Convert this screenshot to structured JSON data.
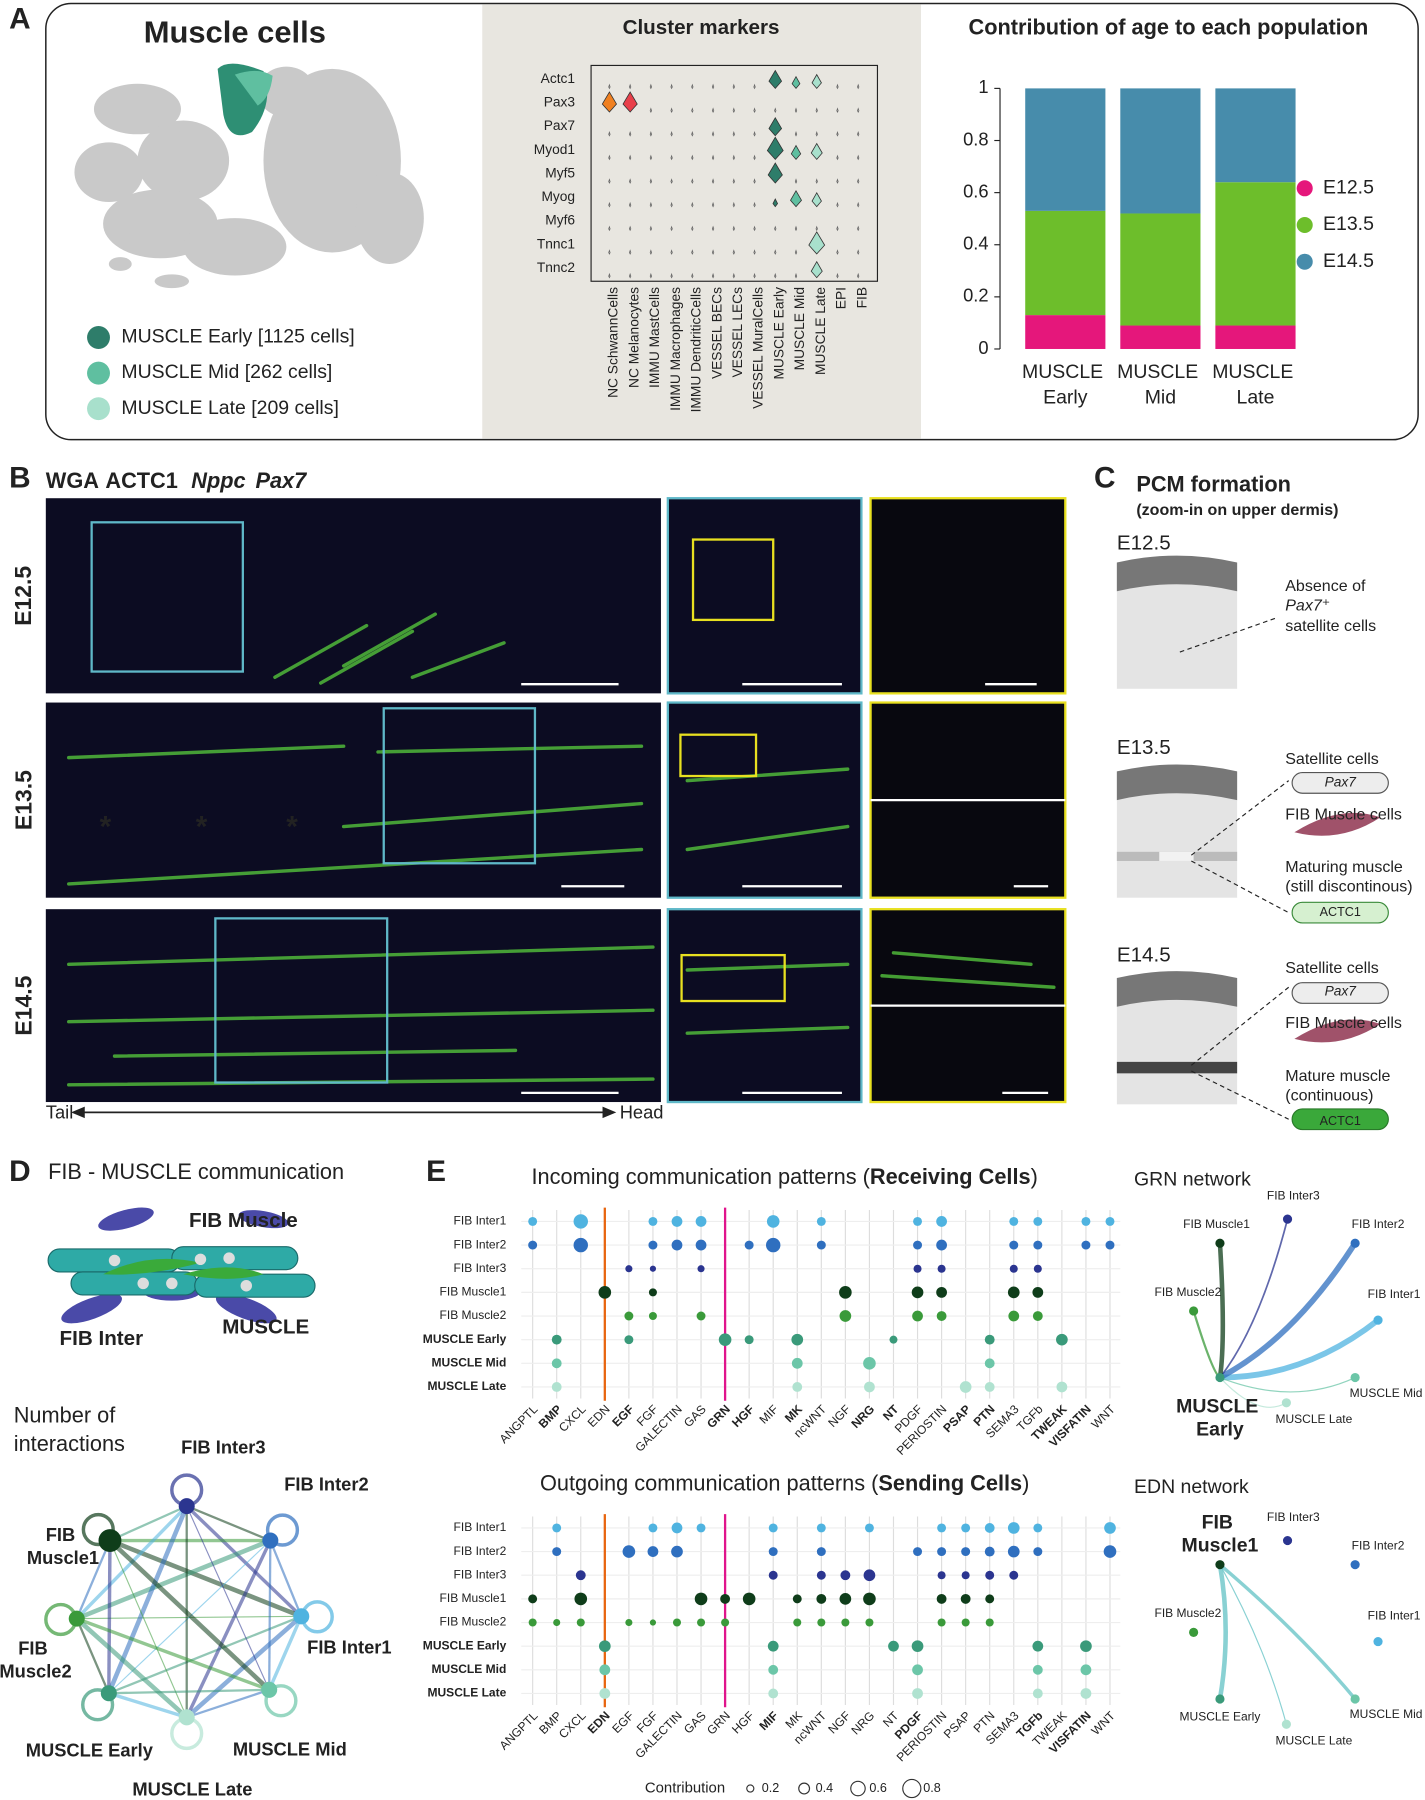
{
  "figure": {
    "panel_labels": [
      "A",
      "B",
      "C",
      "D",
      "E"
    ],
    "a": {
      "title": "Muscle cells",
      "legend": [
        "MUSCLE Early [1125 cells]",
        "MUSCLE Mid [262 cells]",
        "MUSCLE Late [209 cells]"
      ]
    },
    "b": {
      "stains": [
        "WGA",
        "ACTC1",
        "Nppc",
        "Pax7"
      ],
      "stages": [
        "E12.5",
        "E13.5",
        "E14.5"
      ],
      "axis": [
        "Tail",
        "Head"
      ],
      "asterisk": "*"
    },
    "c": {
      "title": "PCM formation",
      "subtitle": "(zoom-in on upper dermis)",
      "stages": [
        {
          "label": "E12.5",
          "notes": [
            "Absence of",
            "Pax7⁺",
            "satellite cells"
          ]
        },
        {
          "label": "E13.5",
          "notes": [
            "Satellite cells",
            "Pax7",
            "FIB Muscle cells",
            "Maturing muscle",
            "(still discontinous)",
            "ACTC1"
          ]
        },
        {
          "label": "E14.5",
          "notes": [
            "Satellite cells",
            "Pax7",
            "FIB Muscle cells",
            "Mature muscle",
            "(continuous)",
            "ACTC1"
          ]
        }
      ]
    },
    "d": {
      "title": "FIB - MUSCLE communication",
      "cartoon": [
        "FIB Muscle",
        "FIB Inter",
        "MUSCLE"
      ],
      "network_title": [
        "Number of",
        "interactions"
      ]
    },
    "e": {
      "networks": [
        "GRN network",
        "EDN network"
      ],
      "size_legend": {
        "title": "Contribution",
        "values": [
          0.2,
          0.4,
          0.6,
          0.8
        ]
      }
    }
  },
  "chart_data": [
    {
      "type": "bar",
      "stacked": true,
      "title": "Contribution of age to each population",
      "categories": [
        "MUSCLE Early",
        "MUSCLE Mid",
        "MUSCLE Late"
      ],
      "series": [
        {
          "name": "E12.5",
          "color": "#e5177b",
          "values": [
            0.13,
            0.09,
            0.09
          ]
        },
        {
          "name": "E13.5",
          "color": "#6dbe2b",
          "values": [
            0.4,
            0.43,
            0.55
          ]
        },
        {
          "name": "E14.5",
          "color": "#478cab",
          "values": [
            0.47,
            0.48,
            0.36
          ]
        }
      ],
      "ylim": [
        0,
        1
      ],
      "yticks": [
        0,
        0.2,
        0.4,
        0.6,
        0.8,
        1
      ]
    },
    {
      "type": "violin",
      "title": "Cluster markers",
      "categories": [
        "NC SchwannCells",
        "NC Melanocytes",
        "IMMU MastCells",
        "IMMU Macrophages",
        "IMMU DendriticCells",
        "VESSEL BECs",
        "VESSEL LECs",
        "VESSEL MuralCells",
        "MUSCLE Early",
        "MUSCLE Mid",
        "MUSCLE Late",
        "EPI",
        "FIB"
      ],
      "genes": [
        "Actc1",
        "Pax3",
        "Pax7",
        "Myod1",
        "Myf5",
        "Myog",
        "Myf6",
        "Tnnc1",
        "Tnnc2"
      ],
      "colors": [
        "#f08020",
        "#e8404a",
        "#888888",
        "#888888",
        "#888888",
        "#888888",
        "#888888",
        "#888888",
        "#2e7d6a",
        "#5fbfa0",
        "#a8e0cc",
        "#888888",
        "#888888"
      ],
      "values": [
        [
          0,
          0,
          0,
          0,
          0,
          0,
          0,
          0,
          0.7,
          0.4,
          0.5,
          0,
          0
        ],
        [
          0.8,
          0.8,
          0,
          0,
          0,
          0,
          0,
          0,
          0,
          0,
          0,
          0,
          0
        ],
        [
          0,
          0,
          0,
          0,
          0,
          0,
          0,
          0,
          0.7,
          0,
          0,
          0,
          0
        ],
        [
          0,
          0,
          0,
          0,
          0,
          0,
          0,
          0,
          0.9,
          0.5,
          0.6,
          0,
          0
        ],
        [
          0,
          0,
          0,
          0,
          0,
          0,
          0,
          0,
          0.8,
          0,
          0,
          0,
          0
        ],
        [
          0,
          0,
          0,
          0,
          0,
          0,
          0,
          0,
          0.2,
          0.6,
          0.5,
          0,
          0
        ],
        [
          0,
          0,
          0,
          0,
          0,
          0,
          0,
          0,
          0,
          0,
          0,
          0,
          0
        ],
        [
          0,
          0,
          0,
          0,
          0,
          0,
          0,
          0,
          0,
          0,
          0.9,
          0,
          0
        ],
        [
          0,
          0,
          0,
          0,
          0,
          0,
          0,
          0,
          0,
          0,
          0.6,
          0,
          0
        ]
      ]
    },
    {
      "type": "dot",
      "title_parts": [
        "Incoming communication patterns (",
        "Receiving Cells",
        ")"
      ],
      "rows": [
        "FIB Inter1",
        "FIB Inter2",
        "FIB Inter3",
        "FIB Muscle1",
        "FIB Muscle2",
        "MUSCLE Early",
        "MUSCLE Mid",
        "MUSCLE Late"
      ],
      "row_colors": [
        "#4fb3e0",
        "#2f6fbf",
        "#2b3590",
        "#0f3d1a",
        "#3a9a3a",
        "#3a9a7a",
        "#6cc6a8",
        "#b0e2d0"
      ],
      "highlight_rows": [
        5,
        6,
        7
      ],
      "categories": [
        "ANGPTL",
        "BMP",
        "CXCL",
        "EDN",
        "EGF",
        "FGF",
        "GALECTIN",
        "GAS",
        "GRN",
        "HGF",
        "MIF",
        "MK",
        "ncWNT",
        "NGF",
        "NRG",
        "NT",
        "PDGF",
        "PERIOSTIN",
        "PSAP",
        "PTN",
        "SEMA3",
        "TGFb",
        "TWEAK",
        "VISFATIN",
        "WNT"
      ],
      "highlight_categories": [
        1,
        4,
        8,
        9,
        11,
        14,
        15,
        18,
        19,
        22,
        23
      ],
      "lines": [
        {
          "index": 3,
          "color": "#e8650f"
        },
        {
          "index": 8,
          "color": "#e0148c"
        }
      ],
      "values": [
        [
          0.3,
          null,
          0.6,
          null,
          null,
          0.3,
          0.4,
          0.4,
          null,
          null,
          0.5,
          null,
          0.3,
          null,
          null,
          null,
          0.3,
          0.4,
          null,
          null,
          0.3,
          0.3,
          null,
          0.3,
          0.3
        ],
        [
          0.3,
          null,
          0.6,
          null,
          null,
          0.3,
          0.4,
          0.4,
          null,
          0.3,
          0.6,
          null,
          0.3,
          null,
          null,
          null,
          0.3,
          0.4,
          null,
          null,
          0.3,
          0.3,
          null,
          0.3,
          0.3
        ],
        [
          null,
          null,
          null,
          null,
          0.2,
          0.15,
          null,
          0.2,
          null,
          null,
          null,
          null,
          null,
          null,
          null,
          null,
          0.25,
          0.25,
          null,
          null,
          0.25,
          0.25,
          null,
          null,
          null
        ],
        [
          null,
          null,
          null,
          0.5,
          null,
          0.25,
          null,
          null,
          null,
          null,
          null,
          null,
          null,
          0.5,
          null,
          null,
          0.45,
          0.4,
          null,
          null,
          0.45,
          0.4,
          null,
          null,
          null
        ],
        [
          null,
          null,
          null,
          null,
          0.3,
          0.25,
          null,
          0.3,
          null,
          null,
          null,
          null,
          null,
          0.45,
          null,
          null,
          0.4,
          0.35,
          null,
          null,
          0.4,
          0.35,
          null,
          null,
          null
        ],
        [
          null,
          0.35,
          null,
          null,
          0.3,
          null,
          null,
          null,
          0.5,
          0.3,
          null,
          0.45,
          null,
          null,
          null,
          0.25,
          null,
          null,
          null,
          0.35,
          null,
          null,
          0.45,
          null,
          null
        ],
        [
          null,
          0.35,
          null,
          null,
          null,
          null,
          null,
          null,
          null,
          null,
          null,
          0.4,
          null,
          null,
          0.5,
          null,
          null,
          null,
          null,
          0.35,
          null,
          null,
          null,
          null,
          null
        ],
        [
          null,
          0.35,
          null,
          null,
          null,
          null,
          null,
          null,
          null,
          null,
          null,
          0.35,
          null,
          null,
          0.4,
          null,
          null,
          null,
          0.45,
          0.35,
          null,
          null,
          0.4,
          null,
          null
        ]
      ]
    },
    {
      "type": "dot",
      "title_parts": [
        "Outgoing communication patterns (",
        "Sending Cells",
        ")"
      ],
      "rows": [
        "FIB Inter1",
        "FIB Inter2",
        "FIB Inter3",
        "FIB Muscle1",
        "FIB Muscle2",
        "MUSCLE Early",
        "MUSCLE Mid",
        "MUSCLE Late"
      ],
      "row_colors": [
        "#4fb3e0",
        "#2f6fbf",
        "#2b3590",
        "#0f3d1a",
        "#3a9a3a",
        "#3a9a7a",
        "#6cc6a8",
        "#b0e2d0"
      ],
      "highlight_rows": [
        5,
        6,
        7
      ],
      "categories": [
        "ANGPTL",
        "BMP",
        "CXCL",
        "EDN",
        "EGF",
        "FGF",
        "GALECTIN",
        "GAS",
        "GRN",
        "HGF",
        "MIF",
        "MK",
        "ncWNT",
        "NGF",
        "NRG",
        "NT",
        "PDGF",
        "PERIOSTIN",
        "PSAP",
        "PTN",
        "SEMA3",
        "TGFb",
        "TWEAK",
        "VISFATIN",
        "WNT"
      ],
      "highlight_categories": [
        3,
        10,
        16,
        21,
        23
      ],
      "lines": [
        {
          "index": 3,
          "color": "#e8650f"
        },
        {
          "index": 8,
          "color": "#e0148c"
        }
      ],
      "values": [
        [
          null,
          0.3,
          null,
          null,
          null,
          0.3,
          0.4,
          0.3,
          null,
          null,
          0.3,
          null,
          0.3,
          null,
          0.3,
          null,
          null,
          0.3,
          0.3,
          0.35,
          0.45,
          0.3,
          null,
          null,
          0.45
        ],
        [
          null,
          0.3,
          null,
          null,
          0.5,
          0.4,
          0.45,
          null,
          null,
          null,
          0.3,
          null,
          0.3,
          null,
          null,
          null,
          0.3,
          0.3,
          0.3,
          0.35,
          0.45,
          0.3,
          null,
          null,
          0.5
        ],
        [
          null,
          null,
          0.35,
          null,
          null,
          null,
          null,
          null,
          null,
          null,
          0.3,
          null,
          0.3,
          0.35,
          0.45,
          null,
          null,
          0.25,
          0.25,
          0.3,
          0.3,
          null,
          null,
          null,
          null
        ],
        [
          0.3,
          null,
          0.5,
          null,
          null,
          null,
          null,
          0.5,
          0.35,
          0.5,
          null,
          0.3,
          0.35,
          0.45,
          0.5,
          null,
          null,
          0.35,
          0.35,
          0.3,
          null,
          null,
          null,
          null,
          null
        ],
        [
          0.25,
          0.2,
          0.25,
          null,
          0.2,
          0.15,
          0.25,
          0.25,
          0.25,
          null,
          null,
          0.25,
          0.25,
          0.25,
          0.25,
          null,
          null,
          0.25,
          0.25,
          0.25,
          null,
          null,
          null,
          null,
          null
        ],
        [
          null,
          null,
          null,
          0.45,
          null,
          null,
          null,
          null,
          null,
          null,
          0.4,
          null,
          null,
          null,
          null,
          0.4,
          0.45,
          null,
          null,
          null,
          null,
          0.4,
          null,
          0.45,
          null
        ],
        [
          null,
          null,
          null,
          0.4,
          null,
          null,
          null,
          null,
          null,
          null,
          0.35,
          null,
          null,
          null,
          null,
          null,
          0.4,
          null,
          null,
          null,
          null,
          0.35,
          null,
          0.4,
          null
        ],
        [
          null,
          null,
          null,
          0.4,
          null,
          null,
          null,
          null,
          null,
          null,
          0.35,
          null,
          null,
          null,
          null,
          null,
          0.4,
          null,
          null,
          null,
          null,
          0.35,
          null,
          0.4,
          null
        ]
      ]
    }
  ]
}
